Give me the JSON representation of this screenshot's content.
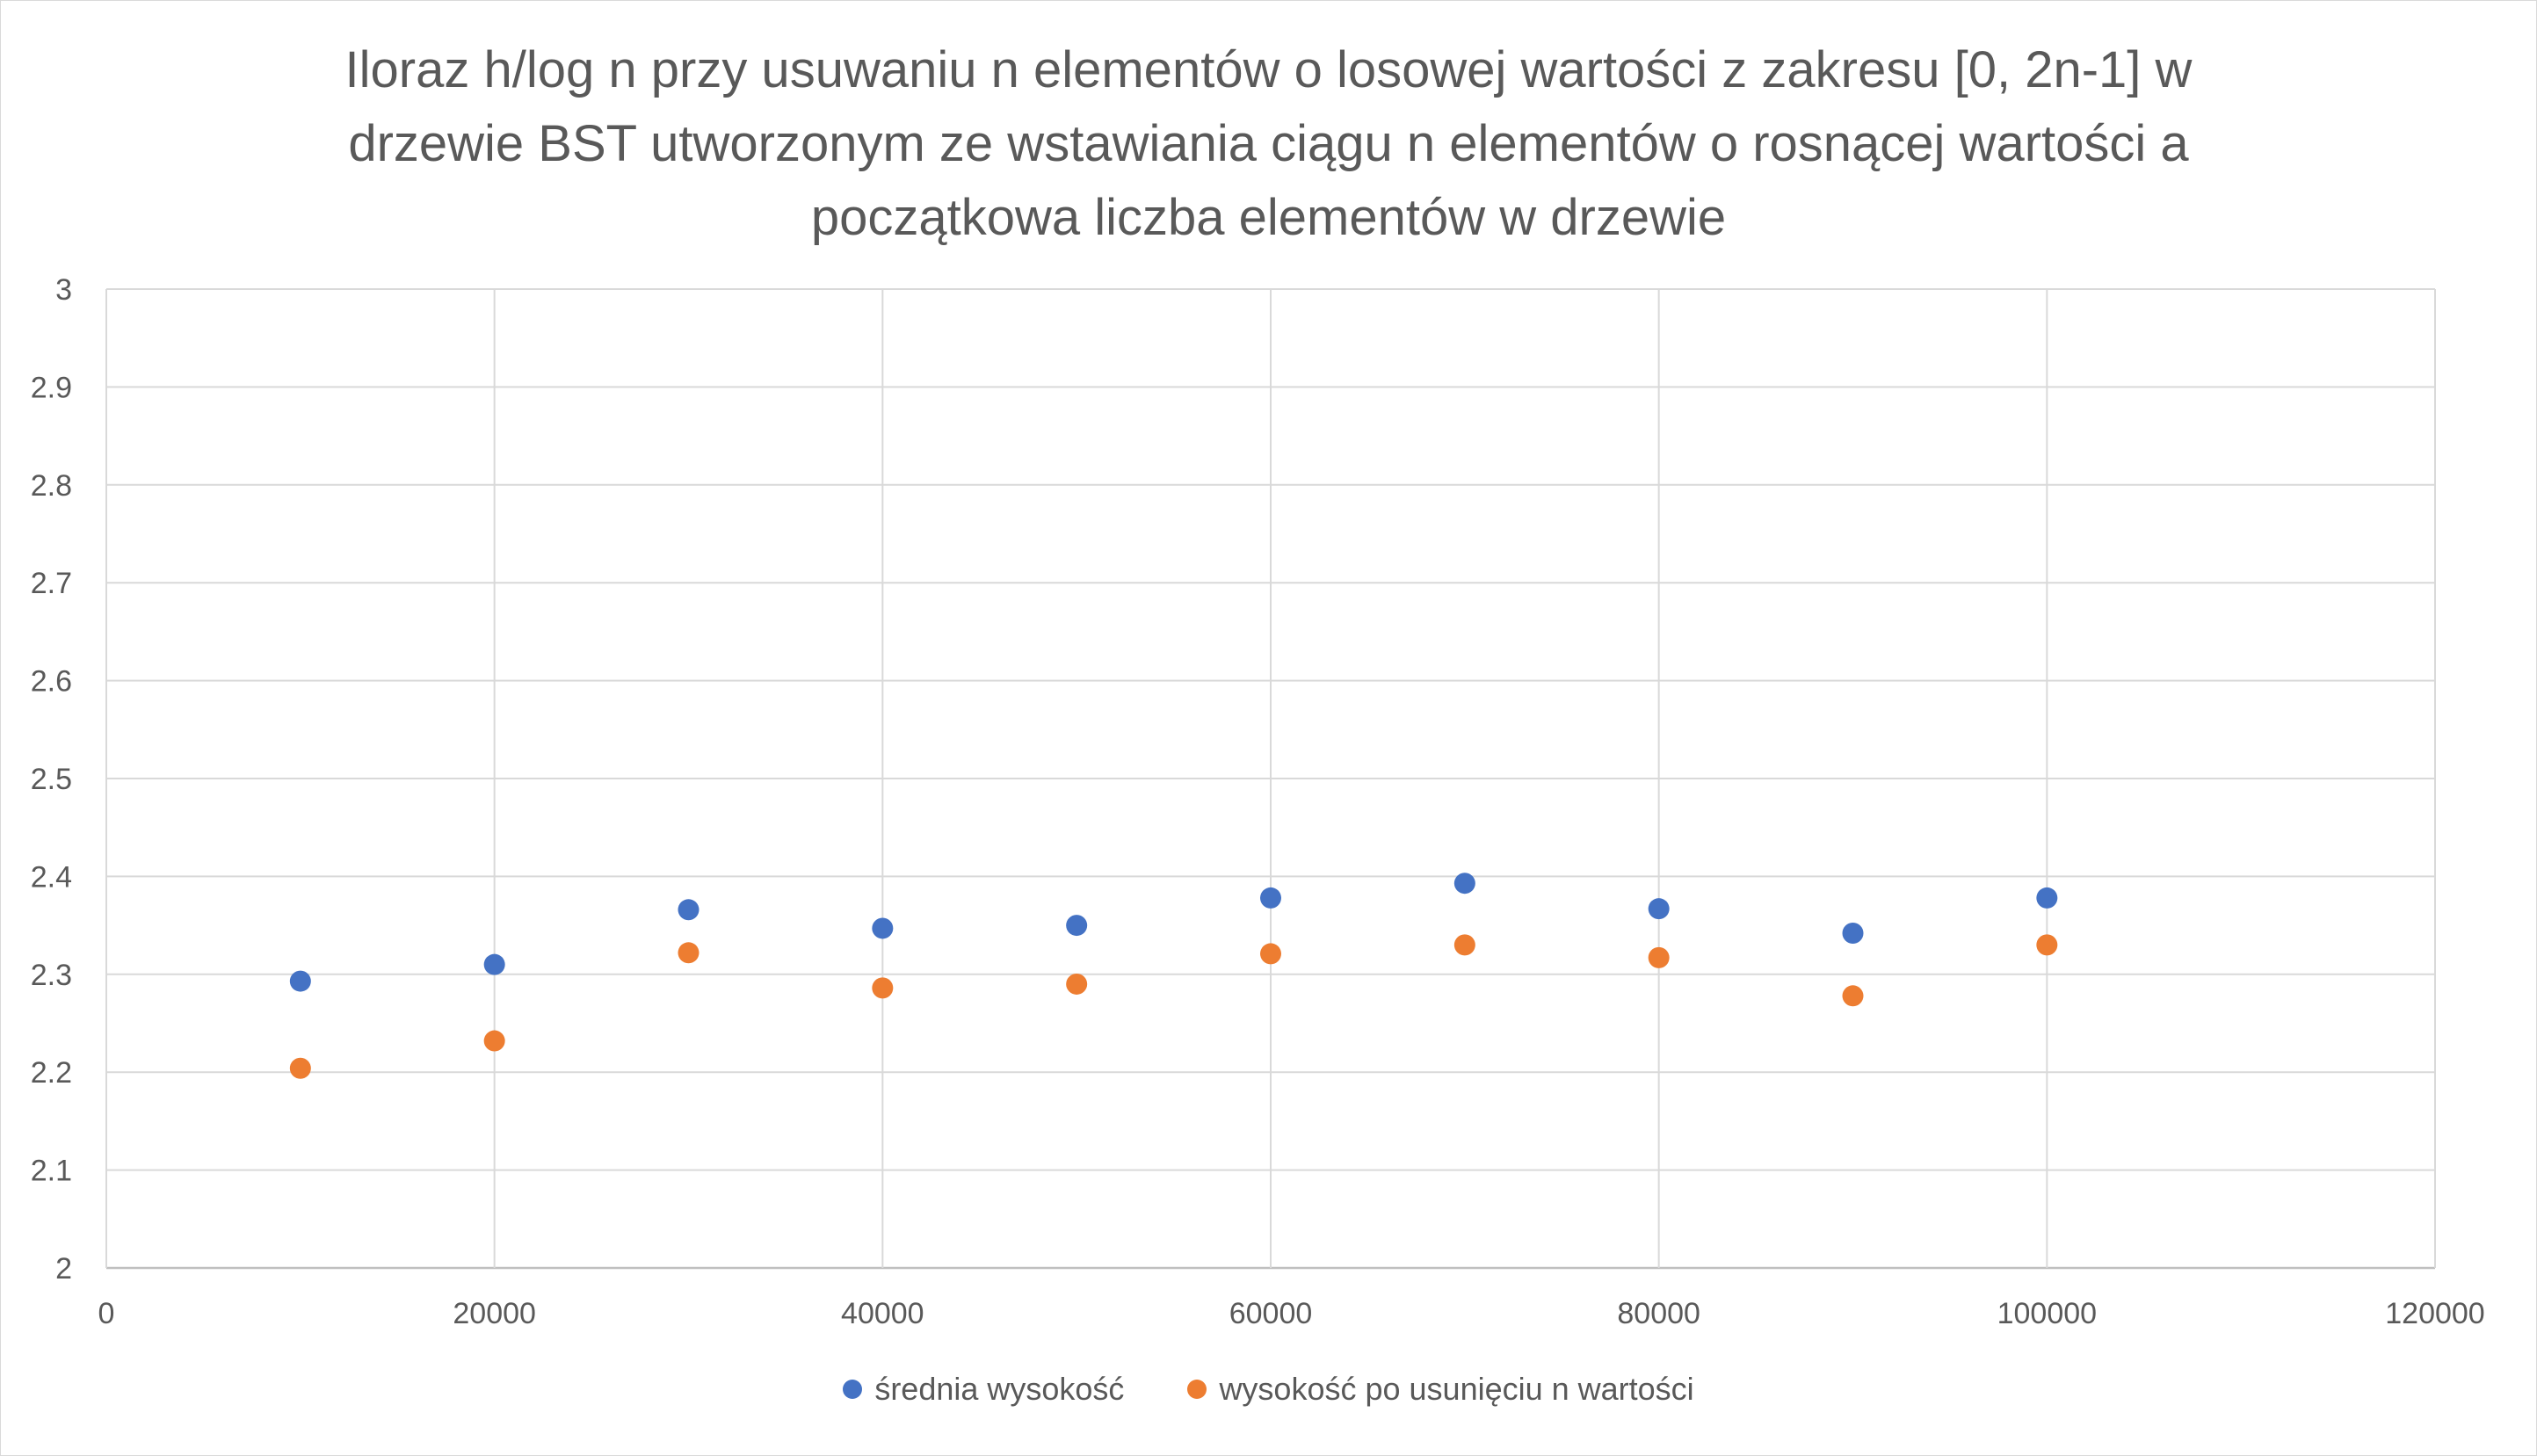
{
  "chart_data": {
    "type": "scatter",
    "title": "Iloraz h/log n przy usuwaniu n elementów o losowej wartości z zakresu [0, 2n-1] w drzewie BST utworzonym ze wstawiania ciągu n elementów o rosnącej wartości a początkowa liczba elementów w drzewie",
    "title_lines": [
      "Iloraz h/log n przy usuwaniu n elementów o losowej wartości z zakresu [0, 2n-1] w",
      "drzewie BST utworzonym ze wstawiania ciągu n elementów o rosnącej wartości a",
      "początkowa liczba elementów w drzewie"
    ],
    "xlabel": "",
    "ylabel": "",
    "xlim": [
      0,
      120000
    ],
    "ylim": [
      2,
      3
    ],
    "x_ticks": [
      0,
      20000,
      40000,
      60000,
      80000,
      100000,
      120000
    ],
    "y_ticks": [
      2,
      2.1,
      2.2,
      2.3,
      2.4,
      2.5,
      2.6,
      2.7,
      2.8,
      2.9,
      3
    ],
    "x_tick_labels": [
      "0",
      "20000",
      "40000",
      "60000",
      "80000",
      "100000",
      "120000"
    ],
    "y_tick_labels": [
      "2",
      "2.1",
      "2.2",
      "2.3",
      "2.4",
      "2.5",
      "2.6",
      "2.7",
      "2.8",
      "2.9",
      "3"
    ],
    "grid": true,
    "legend_position": "bottom",
    "x": [
      10000,
      20000,
      30000,
      40000,
      50000,
      60000,
      70000,
      80000,
      90000,
      100000
    ],
    "series": [
      {
        "name": "średnia wysokość",
        "color": "#4472C4",
        "values": [
          2.293,
          2.31,
          2.366,
          2.347,
          2.35,
          2.378,
          2.393,
          2.367,
          2.342,
          2.378
        ]
      },
      {
        "name": "wysokość po usunięciu n wartości",
        "color": "#ED7D31",
        "values": [
          2.204,
          2.232,
          2.322,
          2.286,
          2.29,
          2.321,
          2.33,
          2.317,
          2.278,
          2.33
        ]
      }
    ]
  }
}
